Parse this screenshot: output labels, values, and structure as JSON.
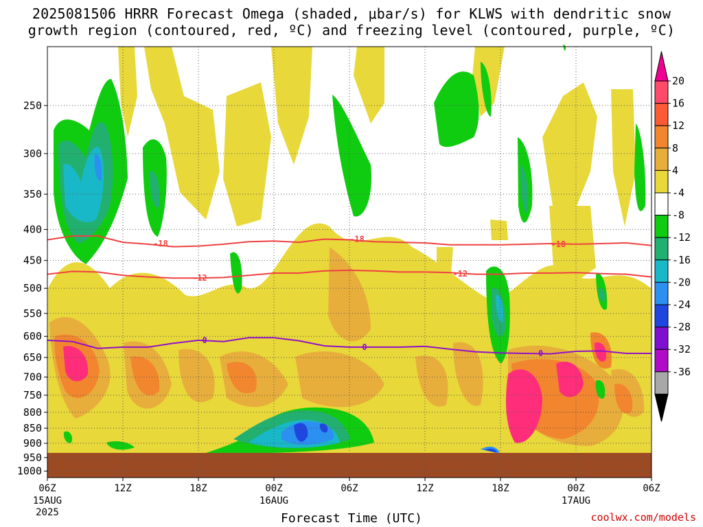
{
  "title_line1": "2025081506 HRRR Forecast Omega (shaded, μbar/s) for KLWS with dendritic snow",
  "title_line2": "growth region (contoured, red, ºC) and freezing level (contoured, purple, ºC)",
  "credit": "coolwx.com/models",
  "chart_data": {
    "type": "heatmap",
    "title": "2025081506 HRRR Forecast Omega (shaded, μbar/s) for KLWS with dendritic snow growth region (contoured, red, ºC) and freezing level (contoured, purple, ºC)",
    "xlabel": "Forecast Time (UTC)",
    "ylabel": "",
    "x_ticks": [
      "06Z",
      "12Z",
      "18Z",
      "00Z",
      "06Z",
      "12Z",
      "18Z",
      "00Z",
      "06Z"
    ],
    "x_tick_hours": [
      0,
      6,
      12,
      18,
      24,
      30,
      36,
      42,
      48
    ],
    "x_date_labels": [
      {
        "hour": 0,
        "lines": [
          "15AUG",
          "2025"
        ]
      },
      {
        "hour": 18,
        "lines": [
          "16AUG"
        ]
      },
      {
        "hour": 42,
        "lines": [
          "17AUG"
        ]
      }
    ],
    "xlim": [
      0,
      48
    ],
    "y_ticks": [
      250,
      300,
      350,
      400,
      450,
      500,
      550,
      600,
      650,
      700,
      750,
      800,
      850,
      900,
      950,
      1000
    ],
    "ylim": [
      200,
      1025
    ],
    "y_scale": "log",
    "y_inverted": true,
    "grid": true,
    "ground_below_hPa": 963,
    "colorbar": {
      "labels": [
        "20",
        "16",
        "12",
        "8",
        "4",
        "-4",
        "-8",
        "-12",
        "-16",
        "-20",
        "-24",
        "-28",
        "-32",
        "-36"
      ],
      "colors": [
        "#ff4a6a",
        "#ff5a36",
        "#f2862e",
        "#e8ae3c",
        "#e8d83a",
        "#ffffff",
        "#10cc10",
        "#22b070",
        "#18b8c8",
        "#2c90f0",
        "#2046e0",
        "#8010d0",
        "#b00cc8",
        "#a8a8a8"
      ],
      "top_arrow_color": "#f00090",
      "bottom_arrow_color": "#000000"
    },
    "contours": [
      {
        "name": "-18",
        "color": "#ef4040",
        "x": [
          0,
          2,
          4,
          6,
          8,
          10,
          12,
          14,
          16,
          18,
          20,
          22,
          24,
          26,
          28,
          30,
          32,
          34,
          36,
          38,
          40,
          42,
          44,
          46,
          48
        ],
        "y": [
          416,
          410,
          410,
          420,
          423,
          427,
          426,
          423,
          419,
          418,
          420,
          415,
          416,
          419,
          420,
          421,
          424,
          424,
          424,
          423,
          422,
          423,
          422,
          421,
          425
        ]
      },
      {
        "name": "-12",
        "color": "#ef4040",
        "x": [
          0,
          2,
          4,
          6,
          8,
          10,
          12,
          14,
          16,
          18,
          20,
          22,
          24,
          26,
          28,
          30,
          32,
          34,
          36,
          38,
          40,
          42,
          44,
          46,
          48
        ],
        "y": [
          474,
          469,
          470,
          476,
          479,
          481,
          481,
          480,
          476,
          472,
          472,
          468,
          467,
          468,
          470,
          470,
          471,
          474,
          474,
          472,
          472,
          471,
          473,
          474,
          479
        ]
      },
      {
        "name": "0",
        "color": "#9010c8",
        "x": [
          0,
          2,
          4,
          6,
          8,
          10,
          12,
          14,
          16,
          18,
          20,
          22,
          24,
          26,
          28,
          30,
          32,
          34,
          36,
          38,
          40,
          42,
          44,
          46,
          48
        ],
        "y": [
          609,
          612,
          628,
          625,
          625,
          616,
          609,
          612,
          603,
          603,
          610,
          622,
          625,
          625,
          625,
          623,
          630,
          636,
          639,
          640,
          641,
          635,
          634,
          640,
          640
        ]
      }
    ],
    "contour_labels": [
      {
        "text": "-18",
        "x": 9,
        "y": 422
      },
      {
        "text": "-18",
        "x": 24.6,
        "y": 415
      },
      {
        "text": "-18",
        "x": 40.6,
        "y": 423
      },
      {
        "text": "-12",
        "x": 12.1,
        "y": 481
      },
      {
        "text": "-12",
        "x": 32.8,
        "y": 473
      },
      {
        "text": "0",
        "x": 12.5,
        "y": 609
      },
      {
        "text": "0",
        "x": 25.2,
        "y": 625
      },
      {
        "text": "0",
        "x": 39.2,
        "y": 640
      }
    ]
  }
}
